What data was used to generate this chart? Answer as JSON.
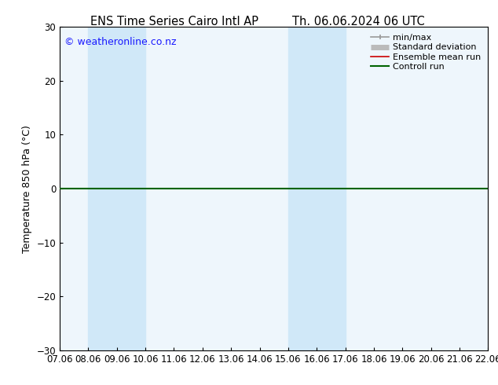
{
  "title_left": "ENS Time Series Cairo Intl AP",
  "title_right": "Th. 06.06.2024 06 UTC",
  "ylabel": "Temperature 850 hPa (°C)",
  "ylim": [
    -30,
    30
  ],
  "yticks": [
    -30,
    -20,
    -10,
    0,
    10,
    20,
    30
  ],
  "xtick_labels": [
    "07.06",
    "08.06",
    "09.06",
    "10.06",
    "11.06",
    "12.06",
    "13.06",
    "14.06",
    "15.06",
    "16.06",
    "17.06",
    "18.06",
    "19.06",
    "20.06",
    "21.06",
    "22.06"
  ],
  "copyright": "© weatheronline.co.nz",
  "shaded_bands": [
    {
      "xstart": 1,
      "xend": 3,
      "color": "#d0e8f8"
    },
    {
      "xstart": 8,
      "xend": 10,
      "color": "#d0e8f8"
    }
  ],
  "plot_bg_color": "#eef6fc",
  "hline_y": 0,
  "green_line_color": "#006400",
  "red_line_color": "#cc0000",
  "background_color": "#ffffff",
  "legend_items": [
    {
      "label": "min/max",
      "color": "#999999",
      "lw": 1.2
    },
    {
      "label": "Standard deviation",
      "color": "#bbbbbb",
      "lw": 5
    },
    {
      "label": "Ensemble mean run",
      "color": "#cc0000",
      "lw": 1.2
    },
    {
      "label": "Controll run",
      "color": "#006400",
      "lw": 1.5
    }
  ],
  "tick_fontsize": 8.5,
  "label_fontsize": 9,
  "title_fontsize": 10.5,
  "legend_fontsize": 8,
  "copyright_color": "#1a1aff",
  "copyright_fontsize": 9
}
